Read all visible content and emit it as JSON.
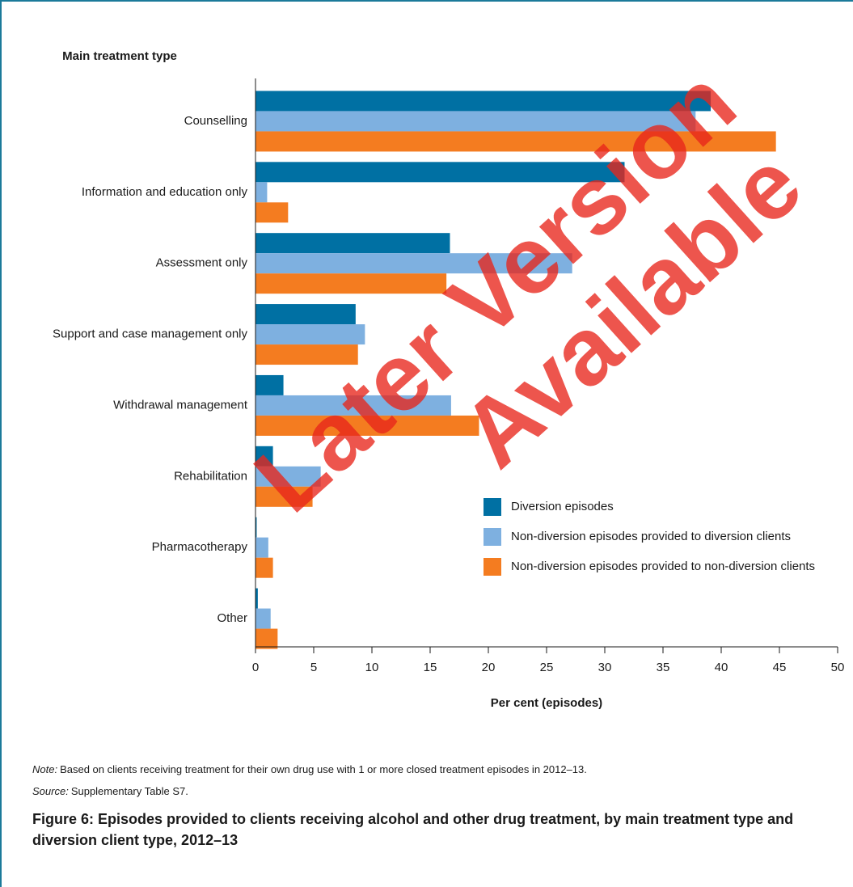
{
  "chart_data": {
    "type": "hbar",
    "y_axis_title": "Main treatment type",
    "x_axis_title": "Per cent (episodes)",
    "categories": [
      "Counselling",
      "Information and education only",
      "Assessment only",
      "Support and case management only",
      "Withdrawal management",
      "Rehabilitation",
      "Pharmacotherapy",
      "Other"
    ],
    "series": [
      {
        "name": "Diversion episodes",
        "color": "#0070a3",
        "values": [
          39.1,
          31.7,
          16.7,
          8.6,
          2.4,
          1.5,
          0.1,
          0.2
        ]
      },
      {
        "name": "Non-diversion episodes provided to diversion clients",
        "color": "#7eb0e0",
        "values": [
          37.8,
          1.0,
          27.2,
          9.4,
          16.8,
          5.6,
          1.1,
          1.3
        ]
      },
      {
        "name": "Non-diversion episodes provided to non-diversion clients",
        "color": "#f47c20",
        "values": [
          44.7,
          2.8,
          16.4,
          8.8,
          19.2,
          4.9,
          1.5,
          1.9
        ]
      }
    ],
    "xlim": [
      0,
      50
    ],
    "xticks": [
      0,
      5,
      10,
      15,
      20,
      25,
      30,
      35,
      40,
      45,
      50
    ],
    "grid": false,
    "legend": "lower right",
    "watermark": [
      "Later Version",
      "Available"
    ],
    "notes": [
      {
        "label": "Note:",
        "text": "Based on clients receiving treatment for their own drug use with 1 or more closed treatment episodes in 2012–13."
      },
      {
        "label": "Source:",
        "text": "Supplementary Table S7."
      }
    ],
    "caption": "Figure 6: Episodes provided to clients receiving alcohol and other drug treatment, by main treatment type and diversion client type, 2012–13"
  }
}
